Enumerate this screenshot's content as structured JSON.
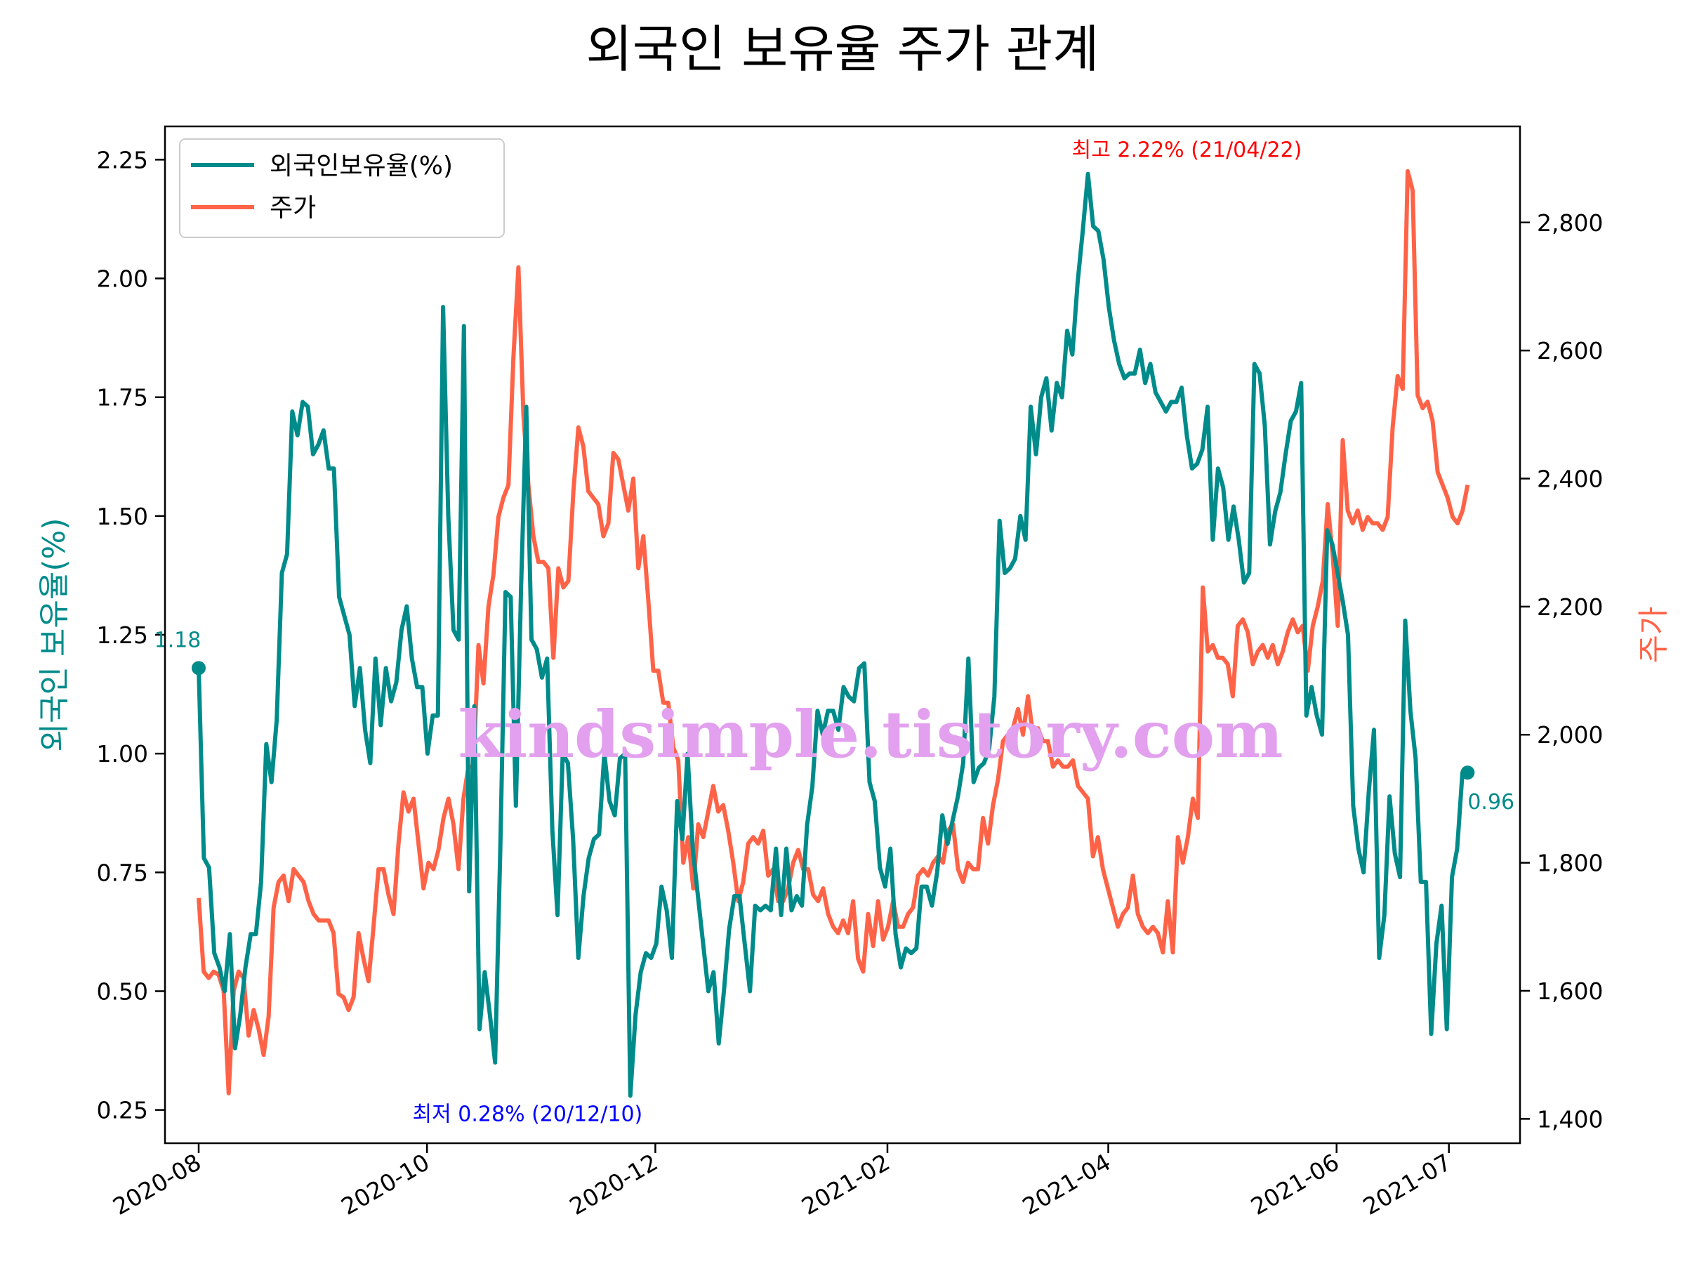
{
  "chart_data": {
    "type": "line",
    "title": "외국인 보유율 주가 관계",
    "ylabel_left": "외국인 보유율(%)",
    "ylabel_right": "주가",
    "xlabel": "",
    "x_ticks": [
      "2020-08",
      "2020-10",
      "2020-12",
      "2021-02",
      "2021-04",
      "2021-06",
      "2021-07"
    ],
    "y_left_ticks": [
      "0.25",
      "0.50",
      "0.75",
      "1.00",
      "1.25",
      "1.50",
      "1.75",
      "2.00",
      "2.25"
    ],
    "y_right_ticks": [
      "1,400",
      "1,600",
      "1,800",
      "2,000",
      "2,200",
      "2,400",
      "2,600",
      "2,800"
    ],
    "ylim_left": [
      0.18,
      2.32
    ],
    "ylim_right": [
      1362,
      2950
    ],
    "legend": {
      "position": "upper-left",
      "entries": [
        "외국인보유율(%)",
        "주가"
      ]
    },
    "colors": {
      "foreign": "#008b8b",
      "price": "#ff6347",
      "max_annot": "#ff0000",
      "min_annot": "#0000ff",
      "watermark": "#e2a0ee"
    },
    "x_start": "2020-08-01",
    "x_end": "2021-07-06",
    "series": [
      {
        "name": "외국인보유율(%)",
        "axis": "left",
        "values": [
          1.18,
          0.78,
          0.76,
          0.58,
          0.55,
          0.5,
          0.62,
          0.38,
          0.45,
          0.55,
          0.62,
          0.62,
          0.73,
          1.02,
          0.94,
          1.07,
          1.38,
          1.42,
          1.72,
          1.67,
          1.74,
          1.73,
          1.63,
          1.65,
          1.68,
          1.6,
          1.6,
          1.33,
          1.29,
          1.25,
          1.1,
          1.18,
          1.05,
          0.98,
          1.2,
          1.06,
          1.18,
          1.11,
          1.15,
          1.26,
          1.31,
          1.2,
          1.14,
          1.14,
          1.0,
          1.08,
          1.08,
          1.94,
          1.5,
          1.26,
          1.24,
          1.9,
          0.71,
          1.1,
          0.42,
          0.54,
          0.45,
          0.35,
          0.8,
          1.34,
          1.33,
          0.89,
          1.35,
          1.73,
          1.24,
          1.22,
          1.16,
          1.2,
          0.84,
          0.66,
          1.0,
          0.98,
          0.82,
          0.57,
          0.7,
          0.78,
          0.82,
          0.83,
          1.0,
          0.9,
          0.87,
          0.99,
          1.0,
          0.28,
          0.45,
          0.54,
          0.58,
          0.57,
          0.6,
          0.72,
          0.67,
          0.57,
          0.9,
          0.82,
          1.0,
          0.8,
          0.7,
          0.6,
          0.5,
          0.54,
          0.39,
          0.5,
          0.63,
          0.7,
          0.7,
          0.6,
          0.5,
          0.68,
          0.67,
          0.68,
          0.67,
          0.8,
          0.66,
          0.8,
          0.67,
          0.7,
          0.68,
          0.85,
          0.93,
          1.09,
          1.04,
          1.09,
          1.09,
          1.05,
          1.14,
          1.12,
          1.11,
          1.18,
          1.19,
          0.94,
          0.9,
          0.76,
          0.72,
          0.8,
          0.62,
          0.55,
          0.59,
          0.58,
          0.59,
          0.72,
          0.72,
          0.68,
          0.75,
          0.87,
          0.81,
          0.86,
          0.91,
          0.98,
          1.2,
          0.94,
          0.97,
          0.98,
          1.01,
          1.12,
          1.49,
          1.38,
          1.39,
          1.41,
          1.5,
          1.45,
          1.73,
          1.63,
          1.75,
          1.79,
          1.68,
          1.78,
          1.75,
          1.89,
          1.84,
          1.99,
          2.1,
          2.22,
          2.11,
          2.1,
          2.04,
          1.94,
          1.87,
          1.82,
          1.79,
          1.8,
          1.8,
          1.85,
          1.78,
          1.82,
          1.76,
          1.74,
          1.72,
          1.74,
          1.74,
          1.77,
          1.67,
          1.6,
          1.61,
          1.64,
          1.73,
          1.45,
          1.6,
          1.56,
          1.45,
          1.52,
          1.45,
          1.36,
          1.38,
          1.82,
          1.8,
          1.69,
          1.44,
          1.51,
          1.55,
          1.63,
          1.7,
          1.72,
          1.78,
          1.08,
          1.14,
          1.08,
          1.04,
          1.47,
          1.44,
          1.38,
          1.32,
          1.25,
          0.89,
          0.8,
          0.75,
          0.92,
          1.05,
          0.57,
          0.66,
          0.91,
          0.79,
          0.74,
          1.28,
          1.09,
          0.99,
          0.73,
          0.73,
          0.41,
          0.6,
          0.68,
          0.42,
          0.74,
          0.8,
          0.96,
          0.96
        ]
      },
      {
        "name": "주가",
        "axis": "right",
        "values": [
          1745,
          1630,
          1620,
          1630,
          1625,
          1600,
          1440,
          1600,
          1630,
          1620,
          1530,
          1570,
          1540,
          1500,
          1560,
          1730,
          1770,
          1780,
          1740,
          1790,
          1780,
          1770,
          1740,
          1720,
          1710,
          1710,
          1710,
          1690,
          1595,
          1590,
          1570,
          1590,
          1690,
          1650,
          1615,
          1700,
          1790,
          1790,
          1750,
          1720,
          1830,
          1910,
          1880,
          1900,
          1830,
          1760,
          1800,
          1790,
          1820,
          1870,
          1900,
          1860,
          1790,
          1900,
          1950,
          1950,
          2140,
          2080,
          2200,
          2250,
          2340,
          2370,
          2390,
          2590,
          2730,
          2500,
          2390,
          2310,
          2270,
          2270,
          2260,
          2120,
          2260,
          2230,
          2240,
          2380,
          2480,
          2450,
          2380,
          2370,
          2360,
          2310,
          2330,
          2440,
          2430,
          2390,
          2350,
          2400,
          2260,
          2310,
          2210,
          2100,
          2100,
          2050,
          2050,
          1980,
          1960,
          1800,
          1840,
          1760,
          1860,
          1840,
          1880,
          1920,
          1880,
          1890,
          1850,
          1800,
          1740,
          1770,
          1830,
          1840,
          1830,
          1850,
          1780,
          1790,
          1740,
          1740,
          1760,
          1800,
          1820,
          1790,
          1790,
          1750,
          1740,
          1760,
          1720,
          1700,
          1690,
          1710,
          1690,
          1740,
          1650,
          1630,
          1720,
          1670,
          1740,
          1680,
          1700,
          1740,
          1700,
          1700,
          1720,
          1730,
          1780,
          1790,
          1780,
          1800,
          1810,
          1800,
          1850,
          1860,
          1790,
          1770,
          1800,
          1790,
          1790,
          1870,
          1830,
          1890,
          1930,
          1990,
          2000,
          2010,
          2040,
          2000,
          2060,
          2000,
          2010,
          1990,
          1990,
          1950,
          1960,
          1950,
          1950,
          1960,
          1920,
          1910,
          1900,
          1810,
          1840,
          1790,
          1760,
          1730,
          1700,
          1720,
          1730,
          1780,
          1720,
          1700,
          1690,
          1700,
          1690,
          1660,
          1740,
          1660,
          1840,
          1800,
          1840,
          1900,
          1870,
          2230,
          2130,
          2140,
          2120,
          2120,
          2110,
          2060,
          2170,
          2180,
          2160,
          2110,
          2130,
          2140,
          2120,
          2140,
          2110,
          2130,
          2160,
          2180,
          2160,
          2170,
          2100,
          2170,
          2200,
          2240,
          2360,
          2280,
          2170,
          2460,
          2350,
          2330,
          2350,
          2320,
          2340,
          2330,
          2330,
          2320,
          2340,
          2480,
          2560,
          2540,
          2880,
          2850,
          2530,
          2510,
          2520,
          2490,
          2410,
          2390,
          2370,
          2340,
          2330,
          2350,
          2390
        ]
      }
    ],
    "annotations": [
      {
        "kind": "start",
        "series": "외국인보유율(%)",
        "text": "1.18",
        "value": 1.18,
        "date": "2020-08-01"
      },
      {
        "kind": "end",
        "series": "외국인보유율(%)",
        "text": "0.96",
        "value": 0.96,
        "date": "2021-07-06"
      },
      {
        "kind": "max",
        "series": "외국인보유율(%)",
        "text": "최고 2.22% (21/04/22)",
        "value": 2.22,
        "date": "2021-04-22"
      },
      {
        "kind": "min",
        "series": "외국인보유율(%)",
        "text": "최저 0.28% (20/12/10)",
        "value": 0.28,
        "date": "2020-12-10"
      }
    ],
    "watermark": "kindsimple.tistory.com",
    "grid": false
  }
}
